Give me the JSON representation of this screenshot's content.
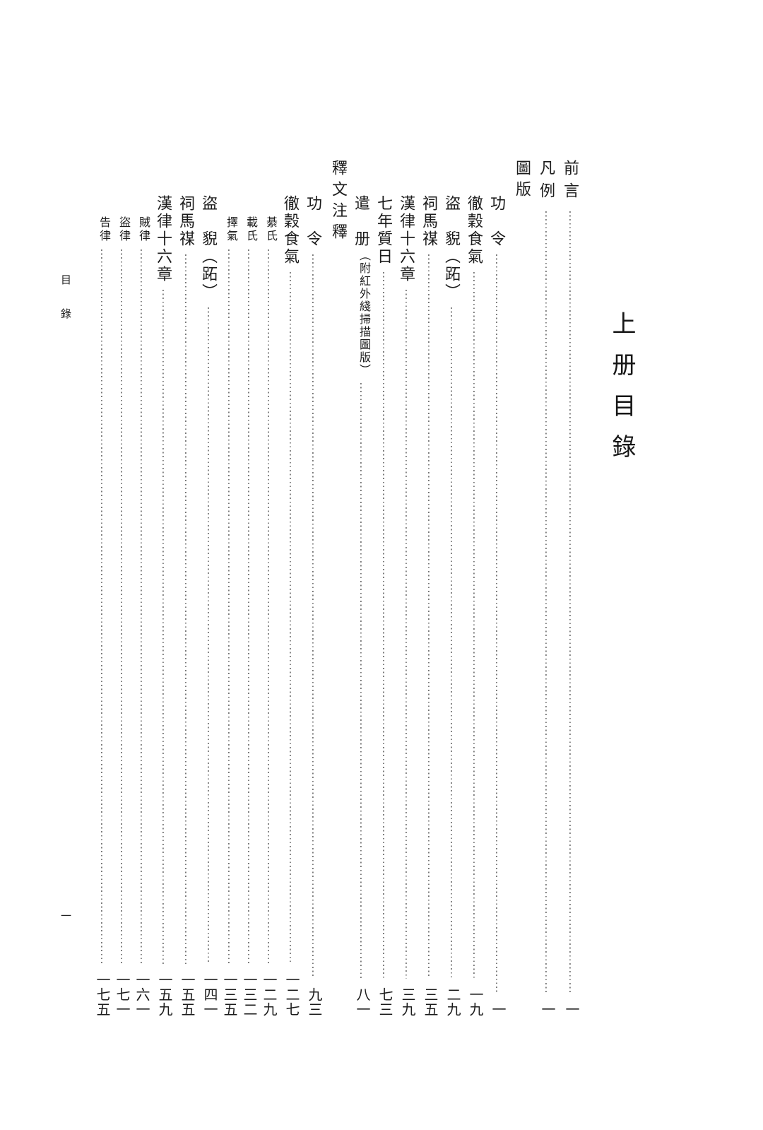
{
  "page": {
    "volume_title": "上册目錄",
    "gutter_running_title": "目錄",
    "gutter_folio": "一"
  },
  "colors": {
    "background": "#ffffff",
    "text": "#1c1c1c",
    "leader_dots": "#767676"
  },
  "toc": {
    "entries": [
      {
        "label": "前言",
        "page": "一",
        "style": "top"
      },
      {
        "label": "凡例",
        "page": "一",
        "style": "top"
      },
      {
        "label": "圖版",
        "page": "",
        "style": "heading"
      },
      {
        "label": "功　令",
        "page": "一",
        "style": "entry"
      },
      {
        "label": "徹穀食氣",
        "page": "一九",
        "style": "entry"
      },
      {
        "label": "盜　貎（跖）",
        "page": "二九",
        "style": "entry"
      },
      {
        "label": "祠馬禖",
        "page": "三五",
        "style": "entry"
      },
      {
        "label": "漢律十六章",
        "page": "三九",
        "style": "entry"
      },
      {
        "label": "七年質日",
        "page": "七三",
        "style": "entry"
      },
      {
        "label": "遣　册",
        "paren": "（附紅外綫掃描圖版）",
        "page": "八一",
        "style": "entry"
      },
      {
        "label": "釋文注釋",
        "page": "",
        "style": "heading"
      },
      {
        "label": "功　令",
        "page": "九三",
        "style": "entry"
      },
      {
        "label": "徹穀食氣",
        "page": "一二七",
        "style": "entry"
      },
      {
        "label": "綦氏",
        "page": "一二九",
        "style": "sub"
      },
      {
        "label": "載氏",
        "page": "一三二",
        "style": "sub"
      },
      {
        "label": "擇氣",
        "page": "一三五",
        "style": "sub"
      },
      {
        "label": "盜　貎（跖）",
        "page": "一四一",
        "style": "entry"
      },
      {
        "label": "祠馬禖",
        "page": "一五五",
        "style": "entry"
      },
      {
        "label": "漢律十六章",
        "page": "一五九",
        "style": "entry"
      },
      {
        "label": "賊律",
        "page": "一六一",
        "style": "sub"
      },
      {
        "label": "盜律",
        "page": "一七一",
        "style": "sub"
      },
      {
        "label": "告律",
        "page": "一七五",
        "style": "sub"
      }
    ]
  }
}
